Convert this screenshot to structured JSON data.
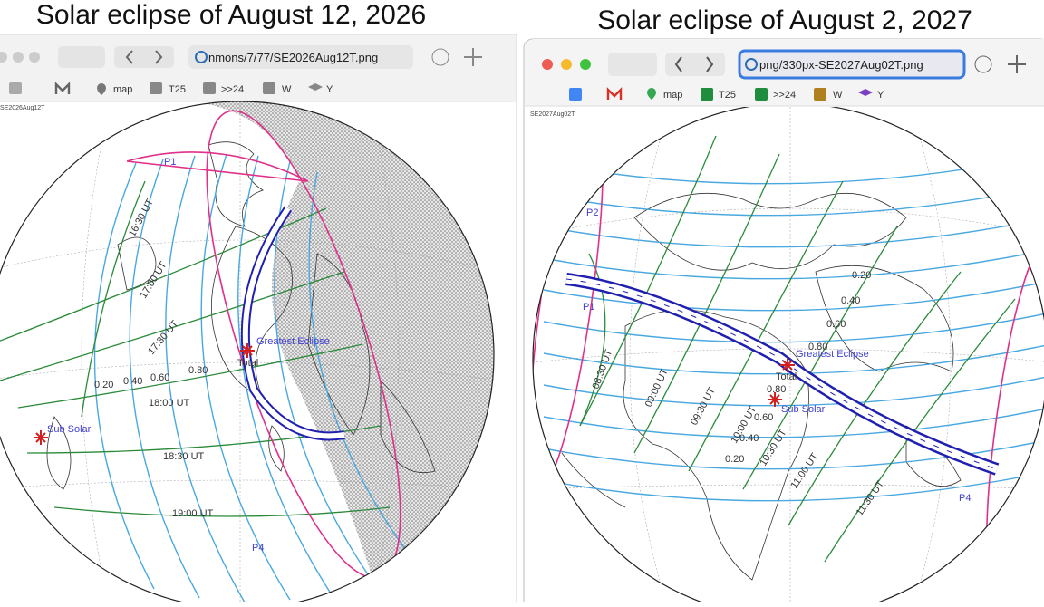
{
  "left": {
    "title": "Solar eclipse of August 12, 2026",
    "url": "nmons/7/77/SE2026Aug12T.png",
    "bookmarks": [
      "map",
      "T25",
      ">>24",
      "W",
      "Y"
    ],
    "map": {
      "code": "SE2026Aug12T",
      "labels": [
        "P1",
        "16:30 UT",
        "17:00 UT",
        "17:30 UT",
        "18:00 UT",
        "18:30 UT",
        "19:00 UT",
        "Greatest Eclipse",
        "Total",
        "Sub Solar",
        "P4",
        "0.20",
        "0.40",
        "0.60",
        "0.80"
      ]
    }
  },
  "right": {
    "title": "Solar eclipse of August 2, 2027",
    "url": "png/330px-SE2027Aug02T.png",
    "bookmarks": [
      "map",
      "T25",
      ">>24",
      "W",
      "Y"
    ],
    "map": {
      "code": "SE2027Aug02T",
      "labels": [
        "P2",
        "P1",
        "Greatest Eclipse",
        "Total",
        "0.80",
        "Sub Solar",
        "0.60",
        "0.40",
        "0.20",
        "0.20",
        "0.40",
        "0.60",
        "0.80",
        "P4",
        "08:30 UT",
        "09:00 UT",
        "09:30 UT",
        "10:00 UT",
        "10:30 UT",
        "11:00 UT",
        "11:30 UT"
      ]
    }
  }
}
